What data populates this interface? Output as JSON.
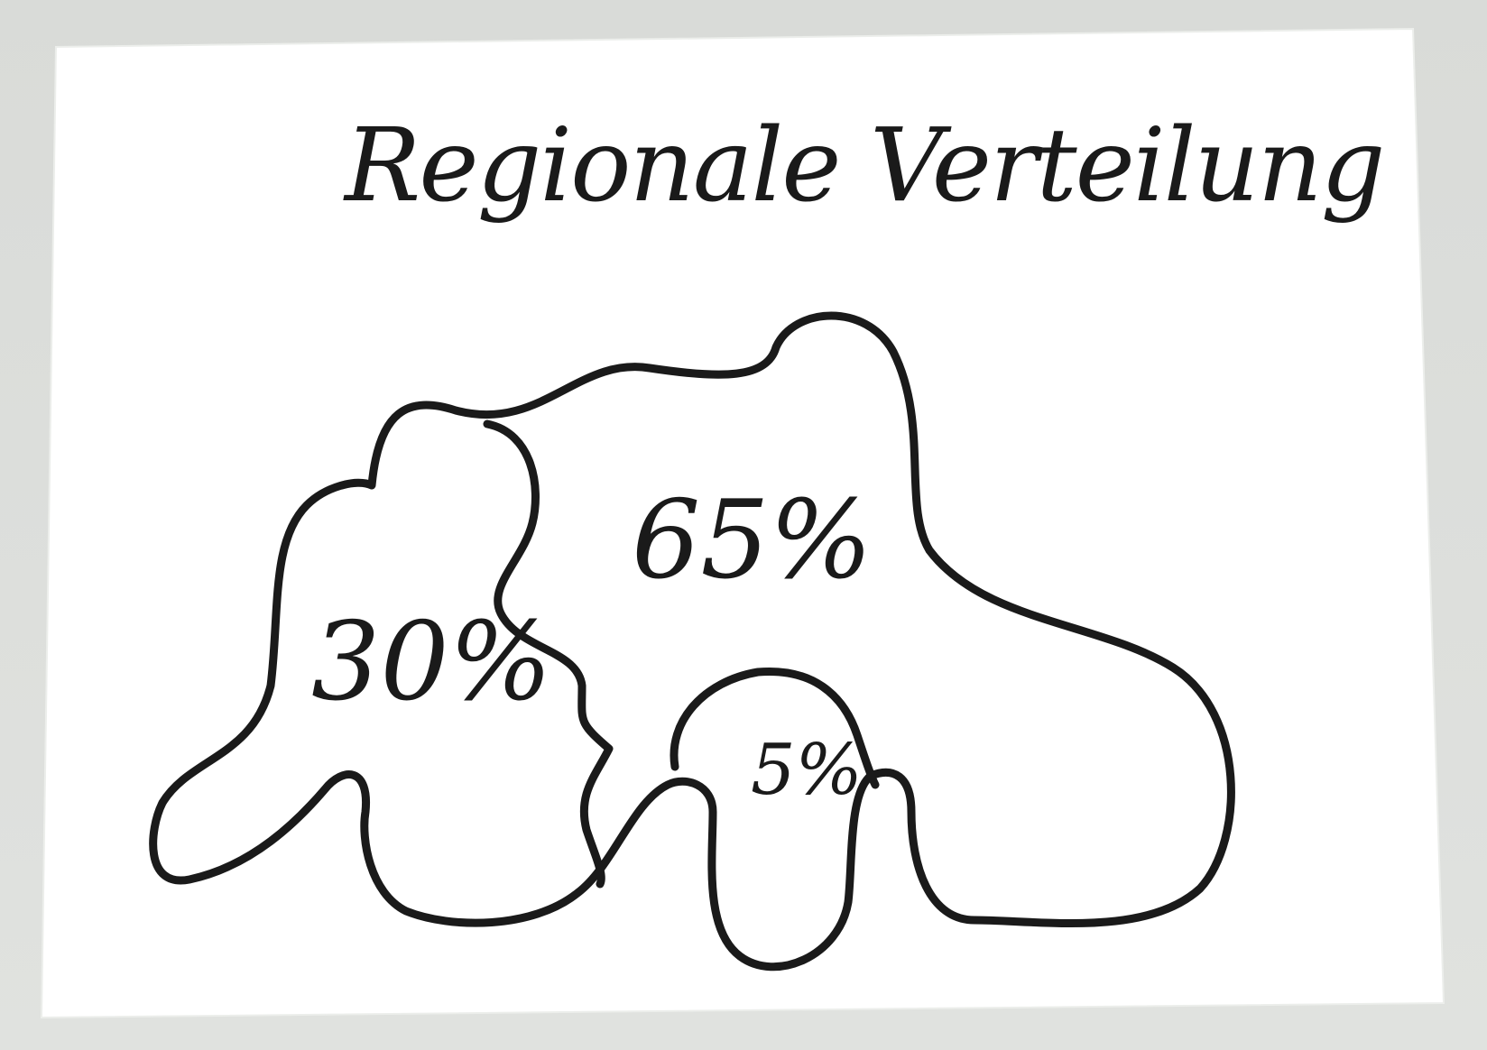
{
  "title": "Regionale Verteilung",
  "regions": [
    {
      "name": "left-region",
      "label": "30%",
      "color": "#1a1a1a"
    },
    {
      "name": "right-region",
      "label": "65%",
      "color": "#1a1a1a"
    },
    {
      "name": "bottom-region",
      "label": "5%",
      "color": "#1a1a1a"
    }
  ],
  "paper_color": "#ffffff",
  "ink_color": "#1a1a1a"
}
